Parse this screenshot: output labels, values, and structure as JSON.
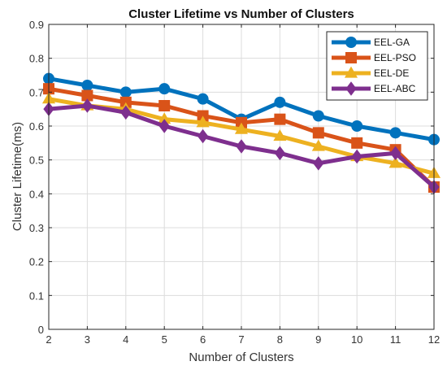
{
  "chart_data": {
    "type": "line",
    "title": "Cluster Lifetime vs Number of Clusters",
    "xlabel": "Number of Clusters",
    "ylabel": "Cluster Lifetime(ms)",
    "x": [
      2,
      3,
      4,
      5,
      6,
      7,
      8,
      9,
      10,
      11,
      12
    ],
    "xlim": [
      2,
      12
    ],
    "ylim": [
      0,
      0.9
    ],
    "xticks": [
      "2",
      "3",
      "4",
      "5",
      "6",
      "7",
      "8",
      "9",
      "10",
      "11",
      "12"
    ],
    "yticks": [
      "0",
      "0.1",
      "0.2",
      "0.3",
      "0.4",
      "0.5",
      "0.6",
      "0.7",
      "0.8",
      "0.9"
    ],
    "grid": true,
    "legend_position": "top-right",
    "series": [
      {
        "name": "EEL-GA",
        "marker": "circle",
        "color": "#0072BD",
        "values": [
          0.74,
          0.72,
          0.7,
          0.71,
          0.68,
          0.62,
          0.67,
          0.63,
          0.6,
          0.58,
          0.56
        ]
      },
      {
        "name": "EEL-PSO",
        "marker": "square",
        "color": "#D95319",
        "values": [
          0.71,
          0.69,
          0.67,
          0.66,
          0.63,
          0.61,
          0.62,
          0.58,
          0.55,
          0.53,
          0.42
        ]
      },
      {
        "name": "EEL-DE",
        "marker": "triangle",
        "color": "#EDB120",
        "values": [
          0.68,
          0.66,
          0.65,
          0.62,
          0.61,
          0.59,
          0.57,
          0.54,
          0.51,
          0.49,
          0.46
        ]
      },
      {
        "name": "EEL-ABC",
        "marker": "diamond",
        "color": "#7E2F8E",
        "values": [
          0.65,
          0.66,
          0.64,
          0.6,
          0.57,
          0.54,
          0.52,
          0.49,
          0.51,
          0.52,
          0.42
        ]
      }
    ]
  }
}
